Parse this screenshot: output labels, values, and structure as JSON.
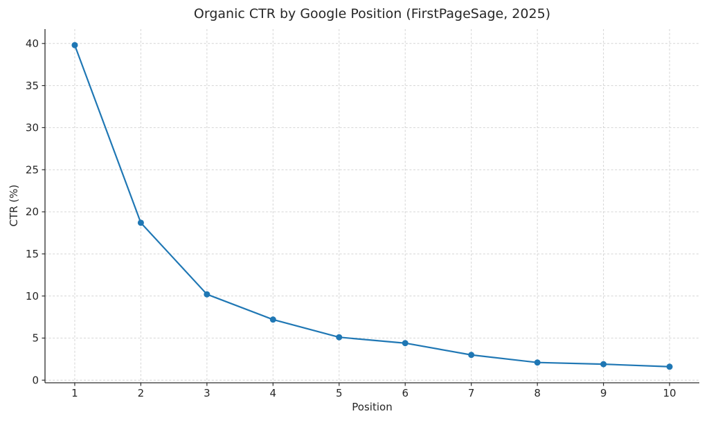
{
  "figure": {
    "background": "#ffffff"
  },
  "chart_data": {
    "type": "line",
    "title": "Organic CTR by Google Position (FirstPageSage, 2025)",
    "xlabel": "Position",
    "ylabel": "CTR (%)",
    "x": [
      1,
      2,
      3,
      4,
      5,
      6,
      7,
      8,
      9,
      10
    ],
    "values": [
      39.8,
      18.7,
      10.2,
      7.2,
      5.1,
      4.4,
      3.0,
      2.1,
      1.9,
      1.6
    ],
    "xticks": [
      1,
      2,
      3,
      4,
      5,
      6,
      7,
      8,
      9,
      10
    ],
    "yticks": [
      0,
      5,
      10,
      15,
      20,
      25,
      30,
      35,
      40
    ],
    "xlim": [
      0.55,
      10.45
    ],
    "ylim": [
      -0.31,
      41.71
    ],
    "grid": true,
    "grid_style": "dashed",
    "legend": false,
    "marker": "circle",
    "colors": {
      "line": "#1f77b4",
      "marker": "#1f77b4",
      "grid": "#d4d4d4",
      "spine": "#2b2b2b",
      "text": "#262626"
    }
  }
}
